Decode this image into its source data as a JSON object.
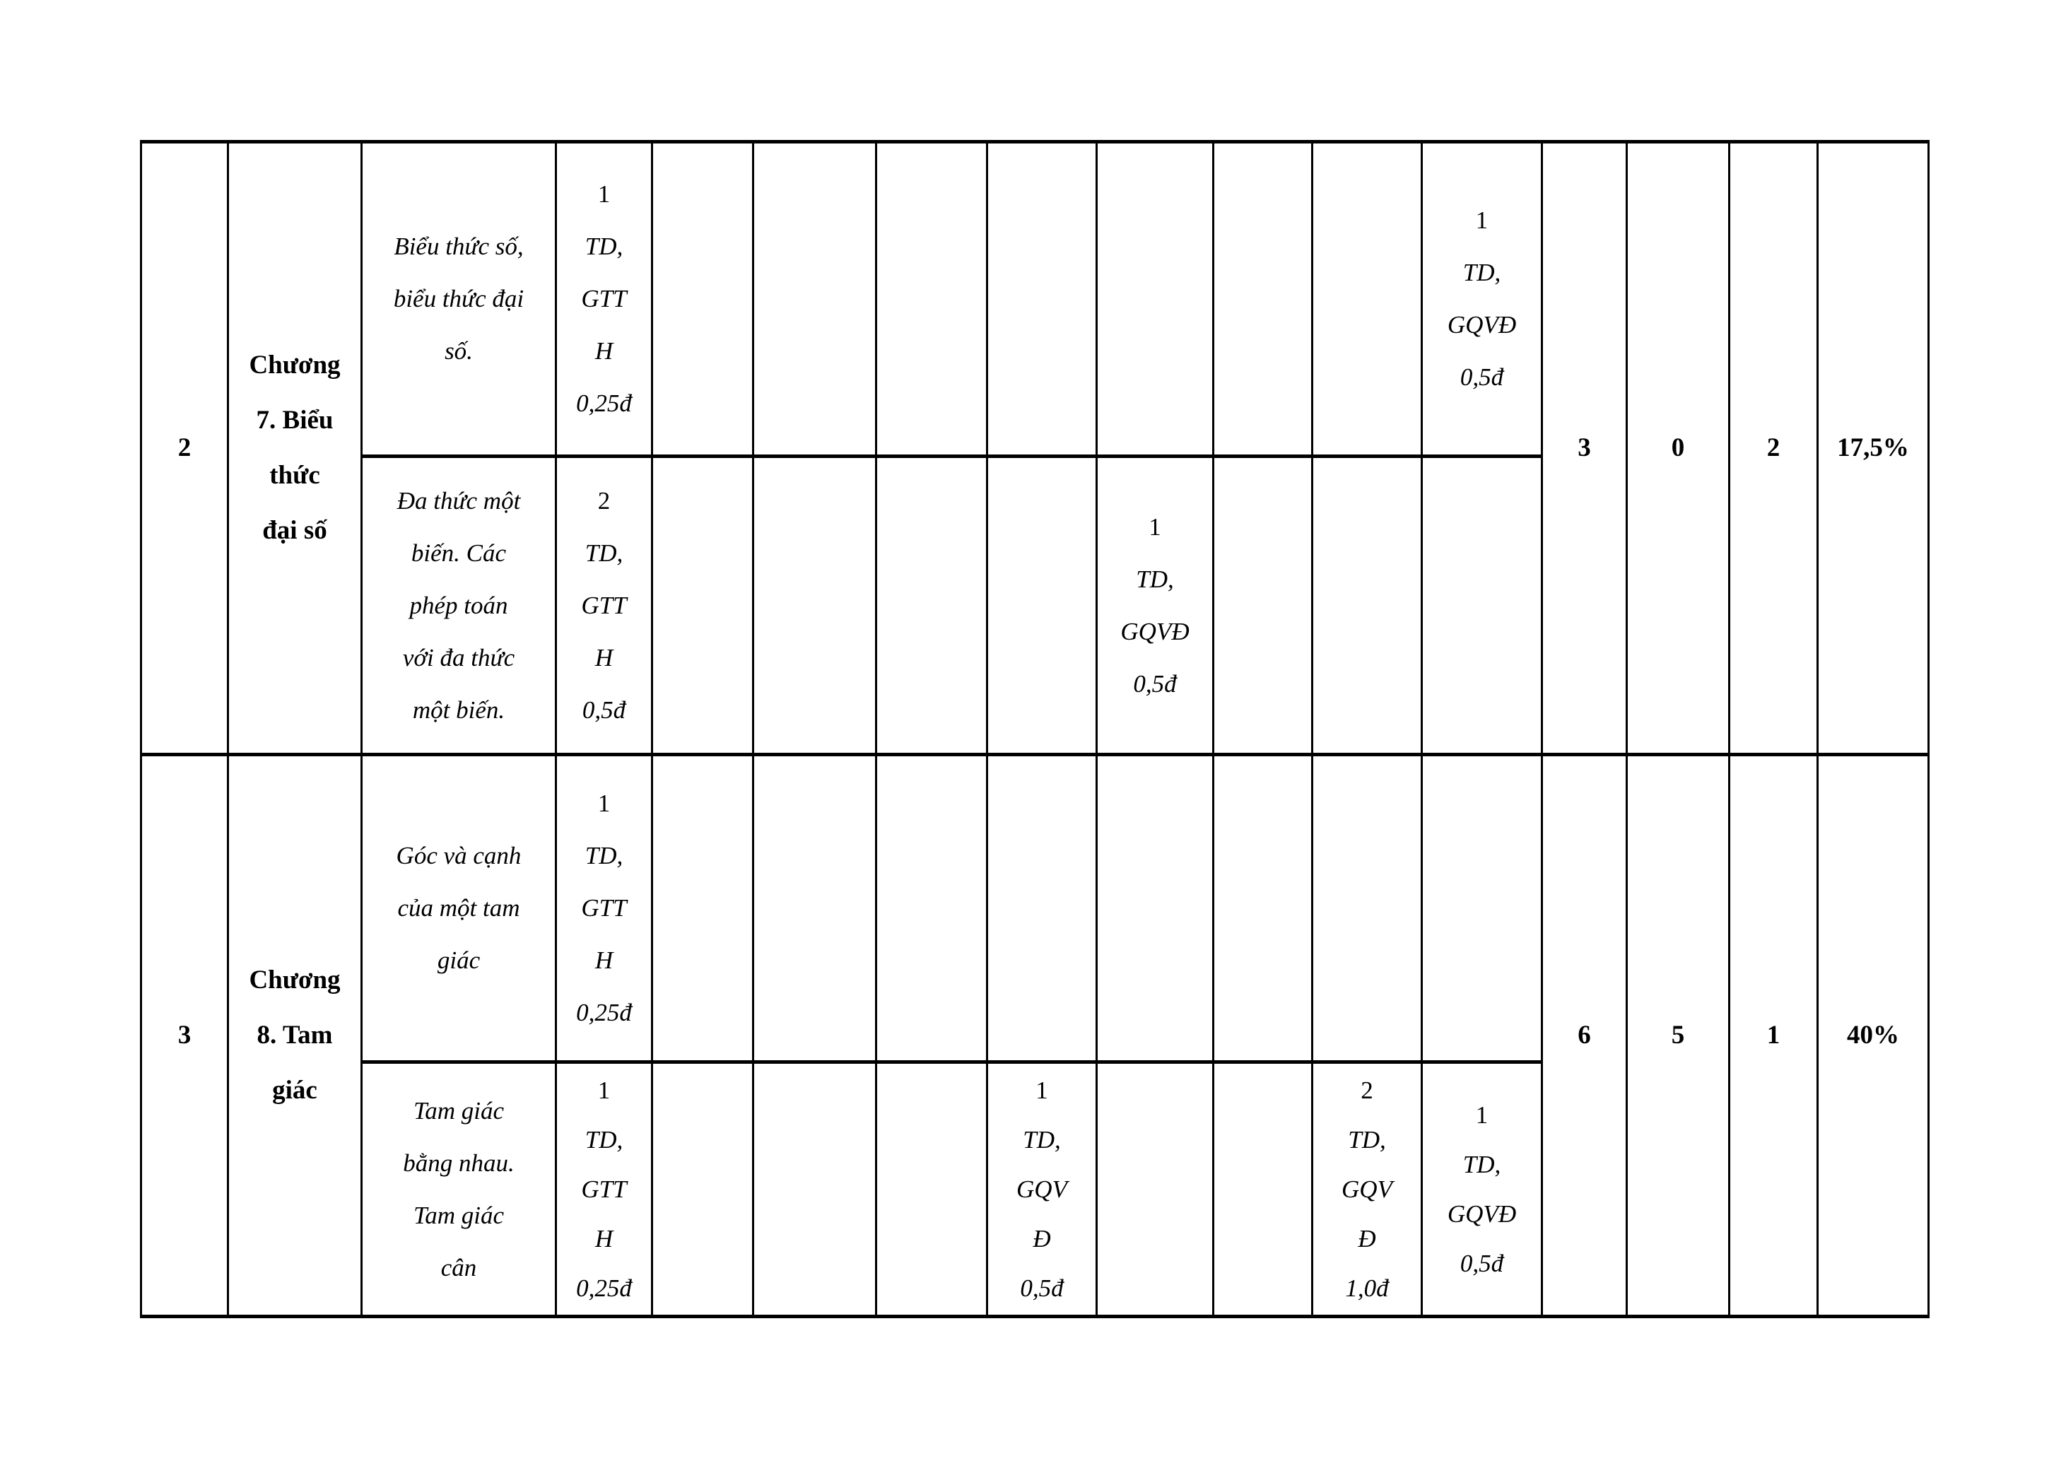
{
  "colors": {
    "background": "#ffffff",
    "border": "#000000",
    "text": "#000000"
  },
  "table": {
    "row2": {
      "stt": "2",
      "chapter_lines": [
        "Chương",
        "7. Biểu",
        "thức",
        "đại số"
      ],
      "sub1": {
        "topic_lines": [
          "Biểu thức số,",
          "biểu thức đại",
          "số."
        ],
        "c4": {
          "n": "1",
          "rest": [
            "TD,",
            "GTT",
            "H",
            "0,25đ"
          ]
        },
        "c12": {
          "n": "1",
          "rest": [
            "TD,",
            "GQVĐ",
            "0,5đ"
          ]
        }
      },
      "sub2": {
        "topic_lines": [
          "Đa thức một",
          "biến. Các",
          "phép toán",
          "với đa thức",
          "một biến."
        ],
        "c4": {
          "n": "2",
          "rest": [
            "TD,",
            "GTT",
            "H",
            "0,5đ"
          ]
        },
        "c9": {
          "n": "1",
          "rest": [
            "TD,",
            "GQVĐ",
            "0,5đ"
          ]
        }
      },
      "totals": {
        "nb": "3",
        "tl": "0",
        "vd": "2",
        "pct": "17,5%"
      }
    },
    "row3": {
      "stt": "3",
      "chapter_lines": [
        "Chương",
        "8. Tam",
        "giác"
      ],
      "sub1": {
        "topic_lines": [
          "Góc và cạnh",
          "của một tam",
          "giác"
        ],
        "c4": {
          "n": "1",
          "rest": [
            "TD,",
            "GTT",
            "H",
            "0,25đ"
          ]
        }
      },
      "sub2": {
        "topic_lines": [
          "Tam giác",
          "bằng nhau.",
          "Tam giác",
          "cân"
        ],
        "c4": {
          "n": "1",
          "rest": [
            "TD,",
            "GTT",
            "H",
            "0,25đ"
          ]
        },
        "c8": {
          "n": "1",
          "rest": [
            "TD,",
            "GQV",
            "Đ",
            "0,5đ"
          ]
        },
        "c11": {
          "n": "2",
          "rest": [
            "TD,",
            "GQV",
            "Đ",
            "1,0đ"
          ]
        },
        "c12": {
          "n": "1",
          "rest": [
            "TD,",
            "GQVĐ",
            "0,5đ"
          ]
        }
      },
      "totals": {
        "nb": "6",
        "tl": "5",
        "vd": "1",
        "pct": "40%"
      }
    }
  }
}
